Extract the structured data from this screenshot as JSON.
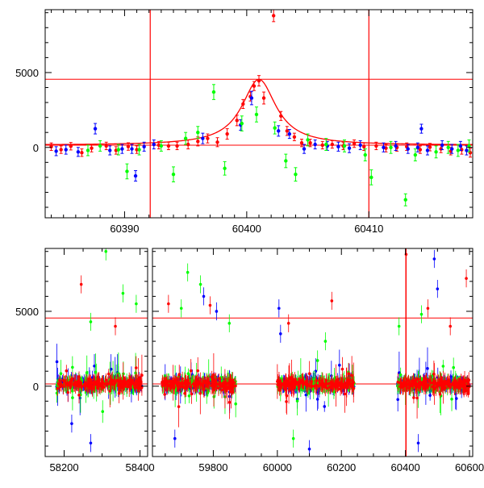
{
  "chart_data": [
    {
      "type": "scatter",
      "xlim": [
        60383.5,
        60418.5
      ],
      "ylim": [
        -4700,
        9200
      ],
      "x_ticks": [
        60390,
        60400,
        60410
      ],
      "y_ticks": [
        0,
        5000
      ],
      "hlines": [
        4550,
        150
      ],
      "vlines": [
        60392.1,
        60410.0
      ],
      "colors": {
        "red": "#ff0000",
        "blue": "#0000ff",
        "green": "#00ff00"
      },
      "model_curve": {
        "type": "peak",
        "t0": 60401.0,
        "baseline": 150,
        "peak": 4550,
        "width": 1.7,
        "color": "#ff0000"
      },
      "series": [
        {
          "color_key": "red",
          "points": [
            [
              60384.0,
              50,
              250
            ],
            [
              60384.8,
              -150,
              250
            ],
            [
              60385.6,
              80,
              250
            ],
            [
              60386.5,
              -350,
              250
            ],
            [
              60387.3,
              -50,
              250
            ],
            [
              60388.5,
              100,
              250
            ],
            [
              60389.3,
              -200,
              250
            ],
            [
              60390.3,
              60,
              250
            ],
            [
              60391.0,
              -150,
              250
            ],
            [
              60392.8,
              150,
              250
            ],
            [
              60393.6,
              100,
              250
            ],
            [
              60394.3,
              100,
              250
            ],
            [
              60395.2,
              200,
              300
            ],
            [
              60396.0,
              400,
              300
            ],
            [
              60396.8,
              600,
              300
            ],
            [
              60397.6,
              350,
              300
            ],
            [
              60398.4,
              900,
              350
            ],
            [
              60399.2,
              1800,
              350
            ],
            [
              60399.7,
              2900,
              300
            ],
            [
              60400.3,
              3400,
              300
            ],
            [
              60400.6,
              4100,
              300
            ],
            [
              60401.0,
              4450,
              350
            ],
            [
              60401.4,
              3300,
              400
            ],
            [
              60402.2,
              8800,
              400
            ],
            [
              60402.8,
              2100,
              300
            ],
            [
              60403.3,
              1100,
              300
            ],
            [
              60403.9,
              700,
              250
            ],
            [
              60404.5,
              300,
              250
            ],
            [
              60405.2,
              300,
              250
            ],
            [
              60406.2,
              150,
              250
            ],
            [
              60407.0,
              200,
              250
            ],
            [
              60407.9,
              100,
              250
            ],
            [
              60408.8,
              250,
              250
            ],
            [
              60409.6,
              50,
              250
            ],
            [
              60410.6,
              100,
              250
            ],
            [
              60411.4,
              -50,
              250
            ],
            [
              60412.3,
              0,
              250
            ],
            [
              60413.1,
              50,
              250
            ],
            [
              60414.2,
              -150,
              250
            ],
            [
              60415.0,
              20,
              250
            ],
            [
              60415.9,
              -100,
              250
            ],
            [
              60416.7,
              -250,
              250
            ],
            [
              60417.6,
              -150,
              300
            ],
            [
              60418.3,
              -350,
              300
            ]
          ]
        },
        {
          "color_key": "blue",
          "points": [
            [
              60384.4,
              -250,
              300
            ],
            [
              60385.2,
              -150,
              300
            ],
            [
              60386.2,
              -300,
              300
            ],
            [
              60387.6,
              1250,
              350
            ],
            [
              60388.8,
              -200,
              300
            ],
            [
              60389.8,
              -100,
              300
            ],
            [
              60390.6,
              -100,
              300
            ],
            [
              60390.9,
              -1900,
              350
            ],
            [
              60391.6,
              50,
              300
            ],
            [
              60392.4,
              200,
              300
            ],
            [
              60396.4,
              600,
              350
            ],
            [
              60399.5,
              1500,
              350
            ],
            [
              60400.4,
              3300,
              450
            ],
            [
              60402.6,
              1100,
              350
            ],
            [
              60403.5,
              900,
              300
            ],
            [
              60404.7,
              -100,
              300
            ],
            [
              60405.6,
              200,
              300
            ],
            [
              60406.6,
              100,
              300
            ],
            [
              60407.5,
              50,
              300
            ],
            [
              60408.4,
              -50,
              300
            ],
            [
              60409.3,
              150,
              300
            ],
            [
              60411.2,
              0,
              300
            ],
            [
              60412.2,
              100,
              300
            ],
            [
              60413.2,
              -100,
              300
            ],
            [
              60414.0,
              0,
              300
            ],
            [
              60414.8,
              -200,
              300
            ],
            [
              60414.3,
              1250,
              300
            ],
            [
              60416.0,
              150,
              300
            ],
            [
              60416.8,
              -100,
              300
            ],
            [
              60417.5,
              100,
              300
            ],
            [
              60418.0,
              -200,
              300
            ]
          ]
        },
        {
          "color_key": "green",
          "points": [
            [
              60387.0,
              -200,
              350
            ],
            [
              60388.0,
              100,
              350
            ],
            [
              60389.5,
              -150,
              350
            ],
            [
              60390.2,
              -1600,
              500
            ],
            [
              60391.2,
              -150,
              350
            ],
            [
              60393.0,
              100,
              350
            ],
            [
              60394.0,
              -1800,
              500
            ],
            [
              60395.0,
              600,
              400
            ],
            [
              60396.0,
              1000,
              400
            ],
            [
              60397.3,
              3700,
              500
            ],
            [
              60398.2,
              -1400,
              450
            ],
            [
              60399.6,
              1600,
              500
            ],
            [
              60400.8,
              2200,
              500
            ],
            [
              60402.3,
              1300,
              400
            ],
            [
              60403.2,
              -900,
              450
            ],
            [
              60404.0,
              -1800,
              450
            ],
            [
              60405.0,
              500,
              400
            ],
            [
              60406.5,
              200,
              400
            ],
            [
              60408.0,
              100,
              400
            ],
            [
              60409.7,
              -500,
              400
            ],
            [
              60410.2,
              -2000,
              500
            ],
            [
              60411.8,
              0,
              400
            ],
            [
              60413.0,
              -3500,
              400
            ],
            [
              60413.8,
              -500,
              400
            ],
            [
              60415.5,
              -300,
              400
            ],
            [
              60416.5,
              0,
              400
            ],
            [
              60417.3,
              -200,
              400
            ],
            [
              60418.2,
              100,
              400
            ]
          ]
        }
      ]
    },
    {
      "type": "scatter",
      "ylim": [
        -4700,
        9200
      ],
      "y_ticks": [
        0,
        5000
      ],
      "hlines": [
        4550,
        150
      ],
      "vlines": [
        60401.0,
        60402.2
      ],
      "x_ticks": [
        58200,
        58400,
        59800,
        60000,
        60200,
        60400,
        60600
      ],
      "segments": [
        {
          "xlim": [
            58150,
            58420
          ]
        },
        {
          "xlim": [
            59610,
            60610
          ]
        }
      ],
      "seasons": [
        {
          "xlim": [
            58180,
            58405
          ],
          "n": 450,
          "green_outliers": [
            [
              58310,
              9000
            ],
            [
              58355,
              6200
            ],
            [
              58270,
              4300
            ],
            [
              58390,
              5500
            ]
          ],
          "red_outliers": [
            [
              58245,
              6800
            ],
            [
              58335,
              4000
            ]
          ],
          "blue_outliers": [
            [
              58270,
              -3800
            ],
            [
              58220,
              -2500
            ]
          ]
        },
        {
          "xlim": [
            59640,
            59870
          ],
          "n": 450,
          "green_outliers": [
            [
              59720,
              7600
            ],
            [
              59760,
              6800
            ],
            [
              59700,
              5200
            ],
            [
              59850,
              4200
            ]
          ],
          "red_outliers": [
            [
              59660,
              5500
            ],
            [
              59790,
              5400
            ]
          ],
          "blue_outliers": [
            [
              59770,
              6000
            ],
            [
              59810,
              5000
            ],
            [
              59680,
              -3500
            ]
          ]
        },
        {
          "xlim": [
            60000,
            60240
          ],
          "n": 450,
          "green_outliers": [
            [
              60050,
              -3500
            ],
            [
              60150,
              3000
            ]
          ],
          "red_outliers": [
            [
              60035,
              4200
            ],
            [
              60170,
              5700
            ]
          ],
          "blue_outliers": [
            [
              60005,
              5200
            ],
            [
              60010,
              3500
            ],
            [
              60100,
              -4200
            ]
          ]
        },
        {
          "xlim": [
            60375,
            60600
          ],
          "n": 450,
          "green_outliers": [
            [
              60380,
              4000
            ],
            [
              60450,
              4800
            ]
          ],
          "red_outliers": [
            [
              60402,
              8800
            ],
            [
              60470,
              5200
            ],
            [
              60590,
              7200
            ],
            [
              60540,
              4000
            ]
          ],
          "blue_outliers": [
            [
              60490,
              8500
            ],
            [
              60500,
              6500
            ],
            [
              60440,
              -3800
            ]
          ]
        }
      ]
    }
  ]
}
